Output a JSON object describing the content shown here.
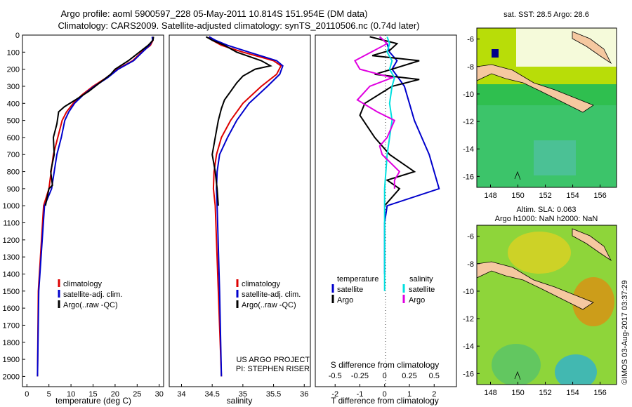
{
  "title_line1": "Argo profile: aoml 5900597_228 05-May-2011 10.814S 151.954E (DM data)",
  "title_line2": "Climatology: CARS2009. Satellite-adjusted climatology: synTS_20110506.nc (0.74d later)",
  "colors": {
    "climatology": "#dd0000",
    "satellite": "#0000cc",
    "argo": "#000000",
    "salinity_satellite": "#00e0e0",
    "salinity_argo": "#e000e0"
  },
  "legend": {
    "climatology": "climatology",
    "satellite": "satellite-adj. clim.",
    "argo": "Argo(..raw -QC)"
  },
  "diff_legend": {
    "temperature": "temperature",
    "salinity": "salinity",
    "satellite": "satellite",
    "argo": "Argo"
  },
  "credit": {
    "line1": "US ARGO PROJECT",
    "line2": "PI: STEPHEN RISER"
  },
  "sst_map": {
    "title": "sat. SST: 28.5  Argo: 28.6",
    "lon_ticks": [
      "148",
      "150",
      "152",
      "154",
      "156"
    ],
    "lat_ticks": [
      "-6",
      "-8",
      "-10",
      "-12",
      "-14",
      "-16"
    ]
  },
  "sla_map": {
    "title1": "Altim. SLA: 0.063",
    "title2": "Argo h1000: NaN h2000: NaN",
    "lon_ticks": [
      "148",
      "150",
      "152",
      "154",
      "156"
    ],
    "lat_ticks": [
      "-6",
      "-8",
      "-10",
      "-12",
      "-14",
      "-16"
    ]
  },
  "timestamp": "©IMOS 03-Aug-2017 03:37:29",
  "chart_data": [
    {
      "type": "line",
      "title": "Temperature profile",
      "xlabel": "temperature (deg C)",
      "ylabel": "depth",
      "xlim": [
        -1,
        31
      ],
      "ylim": [
        2060,
        0
      ],
      "x_ticks": [
        {
          "v": 0,
          "t": "0"
        },
        {
          "v": 5,
          "t": "5"
        },
        {
          "v": 10,
          "t": "10"
        },
        {
          "v": 15,
          "t": "15"
        },
        {
          "v": 20,
          "t": "20"
        },
        {
          "v": 25,
          "t": "25"
        },
        {
          "v": 30,
          "t": "30"
        }
      ],
      "y_ticks": [
        {
          "v": 0,
          "t": "0"
        },
        {
          "v": 100,
          "t": "100"
        },
        {
          "v": 200,
          "t": "200"
        },
        {
          "v": 300,
          "t": "300"
        },
        {
          "v": 400,
          "t": "400"
        },
        {
          "v": 500,
          "t": "500"
        },
        {
          "v": 600,
          "t": "600"
        },
        {
          "v": 700,
          "t": "700"
        },
        {
          "v": 800,
          "t": "800"
        },
        {
          "v": 900,
          "t": "900"
        },
        {
          "v": 1000,
          "t": "1000"
        },
        {
          "v": 1100,
          "t": "1100"
        },
        {
          "v": 1200,
          "t": "1200"
        },
        {
          "v": 1300,
          "t": "1300"
        },
        {
          "v": 1400,
          "t": "1400"
        },
        {
          "v": 1500,
          "t": "1500"
        },
        {
          "v": 1600,
          "t": "1600"
        },
        {
          "v": 1700,
          "t": "1700"
        },
        {
          "v": 1800,
          "t": "1800"
        },
        {
          "v": 1900,
          "t": "1900"
        },
        {
          "v": 2000,
          "t": "2000"
        }
      ],
      "series": [
        {
          "name": "climatology",
          "color": "#dd0000",
          "x": [
            28.6,
            28.6,
            28.0,
            26.0,
            24.0,
            20.5,
            18.0,
            15.0,
            12.5,
            10.5,
            9.0,
            8.0,
            7.0,
            6.0,
            5.5,
            5.0,
            3.8,
            2.6,
            2.4
          ],
          "y": [
            10,
            30,
            60,
            100,
            150,
            200,
            250,
            300,
            350,
            400,
            450,
            500,
            600,
            700,
            800,
            900,
            1000,
            1500,
            2000
          ]
        },
        {
          "name": "satellite-adj. clim.",
          "color": "#0000cc",
          "x": [
            28.4,
            28.5,
            27.8,
            26.2,
            24.2,
            20.7,
            18.3,
            15.3,
            12.8,
            10.8,
            9.5,
            8.6,
            7.8,
            6.8,
            6.2,
            5.6,
            4.0,
            2.7,
            2.4
          ],
          "y": [
            10,
            30,
            60,
            100,
            150,
            200,
            250,
            300,
            350,
            400,
            450,
            500,
            600,
            700,
            800,
            900,
            1000,
            1500,
            2000
          ]
        },
        {
          "name": "Argo(..raw -QC)",
          "color": "#000000",
          "x": [
            28.7,
            28.6,
            27.5,
            25.5,
            23.0,
            20.0,
            19.0,
            16.5,
            14.0,
            11.0,
            8.5,
            7.2,
            6.8,
            6.0,
            6.2,
            5.4,
            5.8,
            5.0,
            4.2
          ],
          "y": [
            10,
            30,
            60,
            100,
            150,
            200,
            230,
            280,
            330,
            380,
            420,
            450,
            520,
            600,
            700,
            800,
            880,
            900,
            1000
          ]
        }
      ]
    },
    {
      "type": "line",
      "title": "Salinity profile",
      "xlabel": "salinity",
      "ylabel": "depth",
      "xlim": [
        33.8,
        36.1
      ],
      "ylim": [
        2060,
        0
      ],
      "x_ticks": [
        {
          "v": 34,
          "t": "34"
        },
        {
          "v": 34.5,
          "t": "34.5"
        },
        {
          "v": 35,
          "t": "35"
        },
        {
          "v": 35.5,
          "t": "35.5"
        },
        {
          "v": 36,
          "t": "36"
        }
      ],
      "series": [
        {
          "name": "climatology",
          "color": "#dd0000",
          "x": [
            34.45,
            34.5,
            34.65,
            35.0,
            35.5,
            35.62,
            35.55,
            35.3,
            35.0,
            34.8,
            34.65,
            34.57,
            34.53,
            34.52,
            34.55,
            34.6,
            34.65
          ],
          "y": [
            10,
            30,
            60,
            100,
            150,
            180,
            230,
            300,
            400,
            500,
            600,
            700,
            800,
            900,
            1000,
            1500,
            2000
          ]
        },
        {
          "name": "satellite-adj. clim.",
          "color": "#0000cc",
          "x": [
            34.45,
            34.55,
            34.75,
            35.1,
            35.55,
            35.65,
            35.6,
            35.4,
            35.1,
            34.9,
            34.75,
            34.62,
            34.58,
            34.57,
            34.58,
            34.62,
            34.65
          ],
          "y": [
            10,
            30,
            60,
            100,
            150,
            180,
            230,
            300,
            400,
            500,
            600,
            700,
            800,
            900,
            1000,
            1500,
            2000
          ]
        },
        {
          "name": "Argo(..raw -QC)",
          "color": "#000000",
          "x": [
            34.4,
            34.5,
            34.7,
            34.9,
            35.3,
            35.45,
            35.2,
            35.0,
            34.9,
            34.8,
            34.7,
            34.65,
            34.6,
            34.55,
            34.5,
            34.55,
            34.58,
            34.6
          ],
          "y": [
            10,
            30,
            60,
            100,
            150,
            180,
            200,
            240,
            280,
            330,
            380,
            430,
            500,
            600,
            700,
            800,
            900,
            1000
          ]
        }
      ]
    },
    {
      "type": "line",
      "title": "Difference from climatology",
      "xlabel": "T difference from climatology",
      "x2label": "S difference from climatology",
      "xlim": [
        -2.8,
        2.9
      ],
      "ylim": [
        2060,
        0
      ],
      "x_ticks": [
        {
          "v": -2,
          "t": "-2"
        },
        {
          "v": -1,
          "t": "-1"
        },
        {
          "v": 0,
          "t": "0"
        },
        {
          "v": 1,
          "t": "1"
        },
        {
          "v": 2,
          "t": "2"
        }
      ],
      "x2_ticks": [
        {
          "v": -2,
          "t": "-0.5"
        },
        {
          "v": -1,
          "t": "-0.25"
        },
        {
          "v": 0,
          "t": "0"
        },
        {
          "v": 1,
          "t": "0.25"
        },
        {
          "v": 2,
          "t": "0.5"
        }
      ],
      "series": [
        {
          "name": "temperature satellite",
          "color": "#0000cc",
          "x": [
            -0.2,
            0.1,
            0.2,
            0.5,
            0.3,
            0.6,
            0.8,
            1.0,
            1.2,
            1.5,
            1.8,
            2.2,
            0.1,
            0.0,
            0.0
          ],
          "y": [
            10,
            50,
            100,
            150,
            200,
            260,
            300,
            400,
            500,
            600,
            700,
            900,
            1000,
            1100,
            1400
          ]
        },
        {
          "name": "temperature Argo",
          "color": "#000000",
          "x": [
            -0.6,
            0.5,
            0.2,
            -0.5,
            1.4,
            0.3,
            -0.4,
            1.4,
            0.3,
            -0.8,
            -1.0,
            -0.4,
            0.2,
            1.2,
            0.1,
            0.6,
            0.0
          ],
          "y": [
            10,
            50,
            90,
            120,
            150,
            200,
            230,
            260,
            300,
            400,
            470,
            600,
            700,
            800,
            850,
            900,
            1000
          ]
        },
        {
          "name": "salinity satellite",
          "color": "#00e0e0",
          "x": [
            0.1,
            0.2,
            0.1,
            0.3,
            0.2,
            0.4,
            0.3,
            0.2,
            0.3,
            0.2,
            0.1,
            0.05,
            0.0,
            0.0,
            0.0
          ],
          "y": [
            10,
            50,
            100,
            150,
            200,
            250,
            300,
            400,
            500,
            600,
            700,
            800,
            900,
            1000,
            1500
          ]
        },
        {
          "name": "salinity Argo",
          "color": "#e000e0",
          "x": [
            -0.2,
            0.1,
            -1.2,
            -1.0,
            0.3,
            -0.6,
            -1.1,
            -0.3,
            0.4,
            0.1,
            -0.2,
            -0.1,
            0.6,
            0.4,
            0.4
          ],
          "y": [
            10,
            50,
            150,
            200,
            250,
            300,
            380,
            450,
            500,
            600,
            650,
            700,
            800,
            850,
            900
          ]
        }
      ]
    }
  ]
}
